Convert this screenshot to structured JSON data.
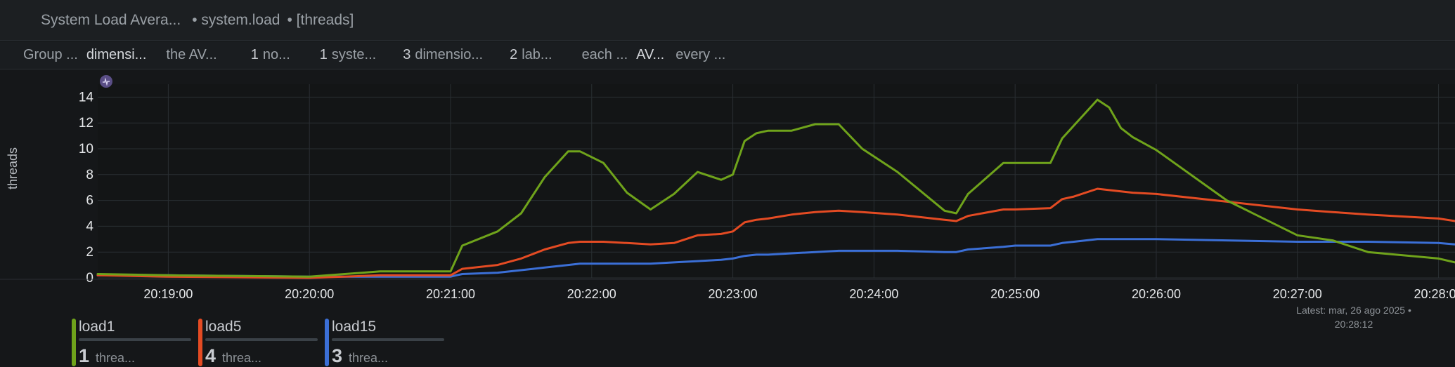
{
  "header": {
    "title": "System Load Avera...",
    "context": "• system.load",
    "units": "• [threads]"
  },
  "toolbar": {
    "group_label": "Group ...",
    "group_value": "dimensi...",
    "agg_label": "the AV...",
    "nodes": {
      "count": "1",
      "label": "no..."
    },
    "systems": {
      "count": "1",
      "label": "syste..."
    },
    "dimensions": {
      "count": "3",
      "label": "dimensio..."
    },
    "labels": {
      "count": "2",
      "label": "lab..."
    },
    "each": "each ...",
    "each_value": "AV...",
    "every": "every ..."
  },
  "chart_data": {
    "type": "line",
    "title": "",
    "xlabel": "",
    "ylabel": "threads",
    "ylim": [
      0,
      15
    ],
    "yticks": [
      0,
      2,
      4,
      6,
      8,
      10,
      12,
      14
    ],
    "xlim": [
      "20:18:30",
      "20:28:07"
    ],
    "xticks": [
      "20:19:00",
      "20:20:00",
      "20:21:00",
      "20:22:00",
      "20:23:00",
      "20:24:00",
      "20:25:00",
      "20:26:00",
      "20:27:00",
      "20:28:00"
    ],
    "grid": true,
    "x": [
      "20:18:30",
      "20:19:00",
      "20:20:00",
      "20:20:30",
      "20:21:00",
      "20:21:05",
      "20:21:20",
      "20:21:30",
      "20:21:40",
      "20:21:50",
      "20:21:55",
      "20:22:05",
      "20:22:15",
      "20:22:25",
      "20:22:35",
      "20:22:45",
      "20:22:55",
      "20:23:00",
      "20:23:05",
      "20:23:10",
      "20:23:15",
      "20:23:25",
      "20:23:35",
      "20:23:45",
      "20:23:55",
      "20:24:10",
      "20:24:30",
      "20:24:35",
      "20:24:40",
      "20:24:55",
      "20:25:00",
      "20:25:15",
      "20:25:20",
      "20:25:25",
      "20:25:35",
      "20:25:40",
      "20:25:45",
      "20:25:50",
      "20:26:00",
      "20:26:30",
      "20:27:00",
      "20:27:15",
      "20:27:30",
      "20:28:00",
      "20:28:07"
    ],
    "series": [
      {
        "name": "load1",
        "color": "#6fa31b",
        "values": [
          0.3,
          0.2,
          0.1,
          0.5,
          0.5,
          2.5,
          3.6,
          5.0,
          7.8,
          9.8,
          9.8,
          8.9,
          6.6,
          5.3,
          6.5,
          8.2,
          7.6,
          8.0,
          10.6,
          11.2,
          11.4,
          11.4,
          11.9,
          11.9,
          10.0,
          8.2,
          5.2,
          5.0,
          6.5,
          8.9,
          8.9,
          8.9,
          10.8,
          11.8,
          13.8,
          13.2,
          11.6,
          10.9,
          9.9,
          6.0,
          3.3,
          2.9,
          2.0,
          1.5,
          1.2
        ]
      },
      {
        "name": "load5",
        "color": "#e44b23",
        "values": [
          0.2,
          0.1,
          0.0,
          0.2,
          0.2,
          0.7,
          1.0,
          1.5,
          2.2,
          2.7,
          2.8,
          2.8,
          2.7,
          2.6,
          2.7,
          3.3,
          3.4,
          3.6,
          4.3,
          4.5,
          4.6,
          4.9,
          5.1,
          5.2,
          5.1,
          4.9,
          4.5,
          4.4,
          4.8,
          5.3,
          5.3,
          5.4,
          6.1,
          6.3,
          6.9,
          6.8,
          6.7,
          6.6,
          6.5,
          5.9,
          5.3,
          5.1,
          4.9,
          4.6,
          4.4
        ]
      },
      {
        "name": "load15",
        "color": "#3b6fd6",
        "values": [
          0.2,
          0.2,
          0.1,
          0.1,
          0.1,
          0.3,
          0.4,
          0.6,
          0.8,
          1.0,
          1.1,
          1.1,
          1.1,
          1.1,
          1.2,
          1.3,
          1.4,
          1.5,
          1.7,
          1.8,
          1.8,
          1.9,
          2.0,
          2.1,
          2.1,
          2.1,
          2.0,
          2.0,
          2.2,
          2.4,
          2.5,
          2.5,
          2.7,
          2.8,
          3.0,
          3.0,
          3.0,
          3.0,
          3.0,
          2.9,
          2.8,
          2.8,
          2.8,
          2.7,
          2.6
        ]
      }
    ]
  },
  "legend": [
    {
      "name": "load1",
      "value": "1",
      "unit": "threa...",
      "color": "#6fa31b"
    },
    {
      "name": "load5",
      "value": "4",
      "unit": "threa...",
      "color": "#e44b23"
    },
    {
      "name": "load15",
      "value": "3",
      "unit": "threa...",
      "color": "#3b6fd6"
    }
  ],
  "latest": {
    "label": "Latest:",
    "date": "mar, 26 ago 2025 •",
    "time": "20:28:12"
  },
  "colors": {
    "background": "#151719",
    "grid": "#2a2f33"
  }
}
